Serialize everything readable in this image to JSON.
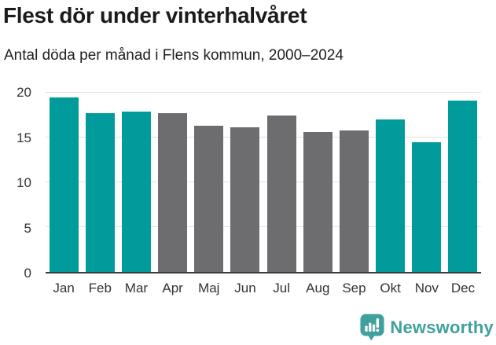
{
  "header": {
    "title": "Flest dör under vinterhalvåret",
    "subtitle": "Antal döda per månad i Flens kommun, 2000–2024"
  },
  "chart_data": {
    "type": "bar",
    "title": "Flest dör under vinterhalvåret",
    "subtitle": "Antal döda per månad i Flens kommun, 2000–2024",
    "categories": [
      "Jan",
      "Feb",
      "Mar",
      "Apr",
      "Maj",
      "Jun",
      "Jul",
      "Aug",
      "Sep",
      "Okt",
      "Nov",
      "Dec"
    ],
    "values": [
      19.5,
      17.7,
      17.9,
      17.7,
      16.3,
      16.1,
      17.5,
      15.6,
      15.8,
      17.0,
      14.5,
      19.1
    ],
    "highlighted": [
      true,
      true,
      true,
      false,
      false,
      false,
      false,
      false,
      false,
      true,
      true,
      true
    ],
    "colors": {
      "highlight": "#009B9A",
      "default": "#6D6D70"
    },
    "xlabel": "",
    "ylabel": "",
    "ylim": [
      0,
      20
    ],
    "yticks": [
      0,
      5,
      10,
      15,
      20
    ],
    "grid": true,
    "gridline_color": "#E2E2E2",
    "axis_color": "#3A3A3A",
    "legend": "none"
  },
  "footer": {
    "brand": "Newsworthy",
    "brand_color": "#3FA09E",
    "logo_icon": "bar-chart-speech-bubble-icon"
  }
}
